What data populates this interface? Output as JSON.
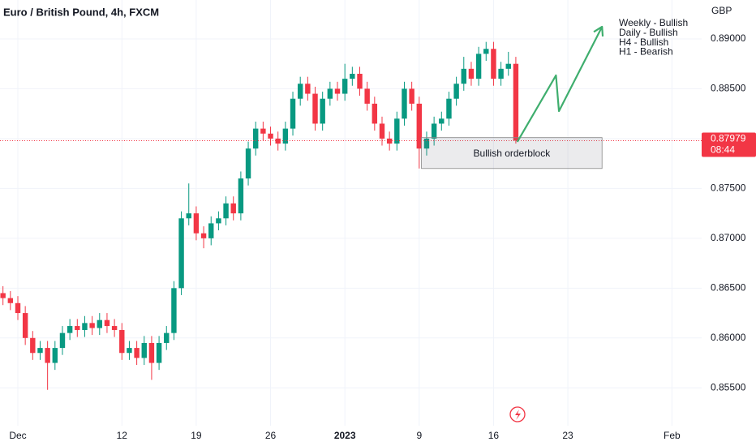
{
  "chart_data": {
    "type": "candlestick",
    "title": "Euro / British Pound, 4h, FXCM",
    "currency": "GBP",
    "up_color": "#089981",
    "down_color": "#f23645",
    "grid": true,
    "xlim": [
      -1.2,
      46
    ],
    "ylim": [
      0.8512,
      0.8939
    ],
    "xticks": [
      {
        "value": 0,
        "label": "Dec"
      },
      {
        "value": 7,
        "label": "12"
      },
      {
        "value": 12,
        "label": "19"
      },
      {
        "value": 17,
        "label": "26"
      },
      {
        "value": 22,
        "label": "2023"
      },
      {
        "value": 27,
        "label": "9"
      },
      {
        "value": 32,
        "label": "16"
      },
      {
        "value": 37,
        "label": "23"
      },
      {
        "value": 44,
        "label": "Feb"
      }
    ],
    "yticks": [
      {
        "value": 0.855,
        "label": "0.85500"
      },
      {
        "value": 0.86,
        "label": "0.86000"
      },
      {
        "value": 0.865,
        "label": "0.86500"
      },
      {
        "value": 0.87,
        "label": "0.87000"
      },
      {
        "value": 0.875,
        "label": "0.87500"
      },
      {
        "value": 0.88,
        "label": "0.88000"
      },
      {
        "value": 0.885,
        "label": "0.88500"
      },
      {
        "value": 0.89,
        "label": "0.89000"
      }
    ],
    "x": [
      -1,
      -0.5,
      0,
      0.5,
      1,
      1.5,
      2,
      2.5,
      3,
      3.5,
      4,
      4.5,
      5,
      5.5,
      6,
      6.5,
      7,
      7.5,
      8,
      8.5,
      9,
      9.5,
      10,
      10.5,
      11,
      11.5,
      12,
      12.5,
      13,
      13.5,
      14,
      14.5,
      15,
      15.5,
      16,
      16.5,
      17,
      17.5,
      18,
      18.5,
      19,
      19.5,
      20,
      20.5,
      21,
      21.5,
      22,
      22.5,
      23,
      23.5,
      24,
      24.5,
      25,
      25.5,
      26,
      26.5,
      27,
      27.5,
      28,
      28.5,
      29,
      29.5,
      30,
      30.5,
      31,
      31.5,
      32,
      32.5,
      33,
      33.5
    ],
    "open": [
      0.8645,
      0.864,
      0.8635,
      0.8625,
      0.86,
      0.8585,
      0.859,
      0.8575,
      0.859,
      0.8605,
      0.8612,
      0.8608,
      0.8615,
      0.861,
      0.8618,
      0.8612,
      0.8608,
      0.8585,
      0.859,
      0.858,
      0.8595,
      0.8575,
      0.8595,
      0.8605,
      0.865,
      0.872,
      0.8725,
      0.8705,
      0.87,
      0.8715,
      0.872,
      0.8735,
      0.8725,
      0.876,
      0.879,
      0.881,
      0.8805,
      0.88,
      0.8795,
      0.881,
      0.884,
      0.8855,
      0.8845,
      0.8815,
      0.884,
      0.885,
      0.8845,
      0.886,
      0.8865,
      0.885,
      0.8835,
      0.8815,
      0.88,
      0.8795,
      0.882,
      0.885,
      0.8835,
      0.879,
      0.88,
      0.8815,
      0.882,
      0.884,
      0.8855,
      0.887,
      0.886,
      0.8885,
      0.889,
      0.886,
      0.887,
      0.8875
    ],
    "high": [
      0.8652,
      0.8647,
      0.8642,
      0.8632,
      0.8607,
      0.8597,
      0.8597,
      0.8597,
      0.8612,
      0.8619,
      0.8619,
      0.8622,
      0.8622,
      0.8625,
      0.8625,
      0.8619,
      0.8615,
      0.8597,
      0.8597,
      0.8602,
      0.8602,
      0.8602,
      0.8612,
      0.8657,
      0.8727,
      0.8755,
      0.8732,
      0.8712,
      0.8722,
      0.8727,
      0.8742,
      0.8742,
      0.8767,
      0.8797,
      0.8817,
      0.8817,
      0.8812,
      0.8807,
      0.8817,
      0.8847,
      0.8862,
      0.8862,
      0.8852,
      0.8847,
      0.8857,
      0.8857,
      0.8875,
      0.8872,
      0.8872,
      0.8857,
      0.8842,
      0.8822,
      0.8807,
      0.8827,
      0.8857,
      0.8857,
      0.8842,
      0.8807,
      0.8822,
      0.8827,
      0.8847,
      0.8862,
      0.8882,
      0.8877,
      0.8892,
      0.8897,
      0.8897,
      0.8877,
      0.8887,
      0.8882
    ],
    "low": [
      0.8633,
      0.8628,
      0.8618,
      0.8593,
      0.8578,
      0.8578,
      0.8548,
      0.8568,
      0.8583,
      0.8598,
      0.8601,
      0.8601,
      0.8603,
      0.8603,
      0.8605,
      0.8601,
      0.8578,
      0.8578,
      0.8573,
      0.8573,
      0.8558,
      0.8568,
      0.8588,
      0.8598,
      0.8643,
      0.8713,
      0.8698,
      0.869,
      0.8693,
      0.8708,
      0.8713,
      0.8718,
      0.8718,
      0.8753,
      0.8783,
      0.8798,
      0.8793,
      0.8788,
      0.8788,
      0.8803,
      0.8833,
      0.8838,
      0.8808,
      0.8808,
      0.8833,
      0.8838,
      0.8838,
      0.8853,
      0.8843,
      0.8828,
      0.8808,
      0.8793,
      0.8788,
      0.8788,
      0.8813,
      0.8828,
      0.877,
      0.8783,
      0.8793,
      0.8808,
      0.8813,
      0.8833,
      0.8848,
      0.8853,
      0.8853,
      0.8878,
      0.8853,
      0.8853,
      0.8863,
      0.8795
    ],
    "close": [
      0.864,
      0.8635,
      0.8625,
      0.86,
      0.8585,
      0.859,
      0.8575,
      0.859,
      0.8605,
      0.8612,
      0.8608,
      0.8615,
      0.861,
      0.8618,
      0.8612,
      0.8608,
      0.8585,
      0.859,
      0.858,
      0.8595,
      0.8575,
      0.8595,
      0.8605,
      0.865,
      0.872,
      0.8725,
      0.8705,
      0.87,
      0.8715,
      0.872,
      0.8735,
      0.8725,
      0.876,
      0.879,
      0.881,
      0.8805,
      0.88,
      0.8795,
      0.881,
      0.884,
      0.8855,
      0.8845,
      0.8815,
      0.884,
      0.885,
      0.8845,
      0.886,
      0.8865,
      0.885,
      0.8835,
      0.8815,
      0.88,
      0.8795,
      0.882,
      0.885,
      0.8835,
      0.879,
      0.88,
      0.8815,
      0.882,
      0.884,
      0.8855,
      0.887,
      0.886,
      0.8885,
      0.889,
      0.886,
      0.887,
      0.8875,
      0.8798
    ],
    "last_price": {
      "value": 0.87979,
      "label": "0.87979"
    },
    "countdown": "08:44",
    "zones": [
      {
        "label": "Bullish orderblock",
        "xlim": [
          27.15,
          39.3
        ],
        "ylim": [
          0.877,
          0.8801
        ]
      }
    ],
    "projection": {
      "color": "#3fae6e",
      "x": [
        33.6,
        36.2,
        36.4,
        39.3
      ],
      "y": [
        0.87967,
        0.88634,
        0.88275,
        0.89122
      ]
    },
    "notes": [
      "Weekly - Bullish",
      "Daily - Bullish",
      "H4 - Bullish",
      "H1 - Bearish"
    ]
  }
}
